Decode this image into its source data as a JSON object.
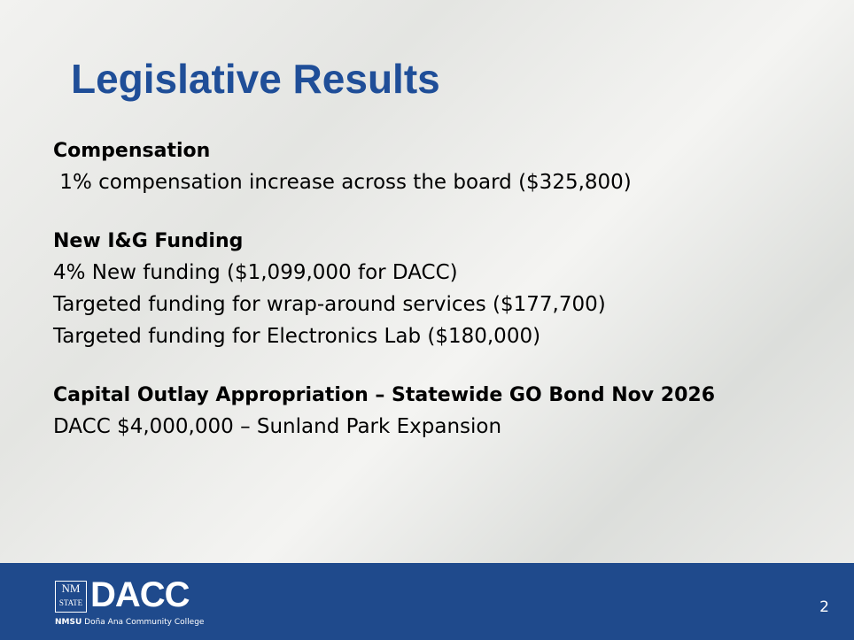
{
  "title": "Legislative Results",
  "sections": [
    {
      "heading": "Compensation",
      "lines": [
        " 1% compensation increase across the board ($325,800)"
      ]
    },
    {
      "heading": "New I&G Funding",
      "lines": [
        "4% New funding ($1,099,000 for DACC)",
        "Targeted funding for wrap-around services ($177,700)",
        "Targeted funding for Electronics Lab ($180,000)"
      ]
    },
    {
      "heading": "Capital Outlay Appropriation – Statewide GO Bond Nov 2026",
      "lines": [
        "DACC $4,000,000 – Sunland Park Expansion"
      ]
    }
  ],
  "footer": {
    "logo_nm": "NM",
    "logo_state": "STATE",
    "logo_dacc": "DACC",
    "logo_sub_nmsu": "NMSU",
    "logo_sub_college": "Doña Ana Community College",
    "page_number": "2"
  }
}
